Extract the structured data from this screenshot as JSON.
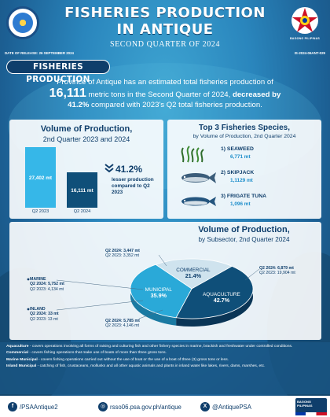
{
  "header": {
    "title_line1": "FISHERIES PRODUCTION",
    "title_line2": "IN ANTIQUE",
    "subtitle": "SECOND QUARTER OF 2024",
    "release_date": "DATE OF RELEASE: 26 SEPTEMBER 2024",
    "reference": "IS-2024-06ANT-029",
    "ph_logo_caption": "BAGONG PILIPINAS",
    "psa_logo": "psa-seal-logo"
  },
  "section": {
    "title": "FISHERIES PRODUCTION",
    "lede_part1": "Province of Antique has an estimated total fisheries production of",
    "lede_big": "16,111",
    "lede_part2": "metric tons in the Second Quarter of 2024,",
    "lede_bold1": "decreased by",
    "lede_bold2": "41.2%",
    "lede_part3": "compared with 2023's Q2 total fisheries production."
  },
  "volume_panel": {
    "title": "Volume of Production,",
    "subtitle": "2nd Quarter 2023 and 2024",
    "change_pct": "41.2%",
    "change_text": "lesser production compared to Q2 2023",
    "change_icon": "chevron-down-double-icon"
  },
  "species_panel": {
    "title": "Top 3 Fisheries Species,",
    "subtitle": "by Volume of Production, 2nd Quarter 2024",
    "items": [
      {
        "name": "1) SEAWEED",
        "value": "6,771 mt",
        "icon": "seaweed-icon"
      },
      {
        "name": "2) SKIPJACK",
        "value": "1,1129 mt",
        "icon": "skipjack-fish-icon"
      },
      {
        "name": "3) FRIGATE TUNA",
        "value": "1,096 mt",
        "icon": "frigate-tuna-icon"
      }
    ]
  },
  "subsector_panel": {
    "title": "Volume of Production,",
    "subtitle": "by Subsector, 2nd Quarter 2024",
    "annotations": {
      "commercial": {
        "q2_2024": "Q2 2024: 3,447 mt",
        "q2_2023": "Q2 2023: 3,352 mt"
      },
      "aquaculture": {
        "q2_2024": "Q2 2024: 6,879 mt",
        "q2_2023": "Q2 2023: 19,904 mt"
      },
      "marine": {
        "label": "MARINE",
        "q2_2024": "Q2 2024: 5,752 mt",
        "q2_2023": "Q2 2023: 4,134 mt"
      },
      "inland": {
        "label": "INLAND",
        "q2_2024": "Q2 2024: 33 mt",
        "q2_2023": "Q2 2023: 13 mt"
      },
      "municipal": {
        "q2_2024": "Q2 2024: 5,785 mt",
        "q2_2023": "Q2 2023: 4,146 mt"
      }
    }
  },
  "notes": [
    {
      "term": "Aquaculture",
      "text": " - covers operations involving all forms of raising and culturing fish and other fishery species in marine, brackish and freshwater under controlled conditions."
    },
    {
      "term": "Commercial",
      "text": " - covers fishing operations that make use of boats of more than three gross tons."
    },
    {
      "term": "Marine Municipal",
      "text": " - covers fishing operations carried out without the use of boat or the use of a boat of three (3) gross tons or less."
    },
    {
      "term": "Inland Municipal",
      "text": " - catching of fish, crustaceans, mollusks and all other aquatic animals and plants in inland water like lakes, rivers, dams, marshes, etc."
    }
  ],
  "footer": {
    "facebook": "/PSAAntique2",
    "website": "rsso06.psa.gov.ph/antique",
    "twitter": "@AntiquePSA",
    "facebook_icon": "facebook-icon",
    "web_icon": "globe-icon",
    "x_icon": "x-logo-icon",
    "badge_text": "BAGONG PILIPINAS"
  },
  "colors": {
    "navy": "#0f3e6b",
    "light_blue": "#36b7e8",
    "dark_teal": "#0f4f79",
    "commercial": "#cfe3ee",
    "aquaculture": "#0f4f79",
    "municipal": "#2aa9d8"
  },
  "chart_data": [
    {
      "type": "bar",
      "categories": [
        "Q2 2023",
        "Q2 2024"
      ],
      "values": [
        27402,
        16111
      ],
      "value_labels": [
        "27,402 mt",
        "16,111 mt"
      ],
      "title": "Volume of Production,",
      "subtitle": "2nd Quarter 2023 and 2024",
      "ylim": [
        0,
        27402
      ]
    },
    {
      "type": "pie",
      "title": "Volume of Production,",
      "subtitle": "by Subsector, 2nd Quarter 2024",
      "slices": [
        {
          "label": "COMMERCIAL",
          "value": 21.4,
          "value_label": "21.4%"
        },
        {
          "label": "AQUACULTURE",
          "value": 42.7,
          "value_label": "42.7%"
        },
        {
          "label": "MUNICIPAL",
          "value": 35.9,
          "value_label": "35.9%"
        }
      ]
    }
  ]
}
